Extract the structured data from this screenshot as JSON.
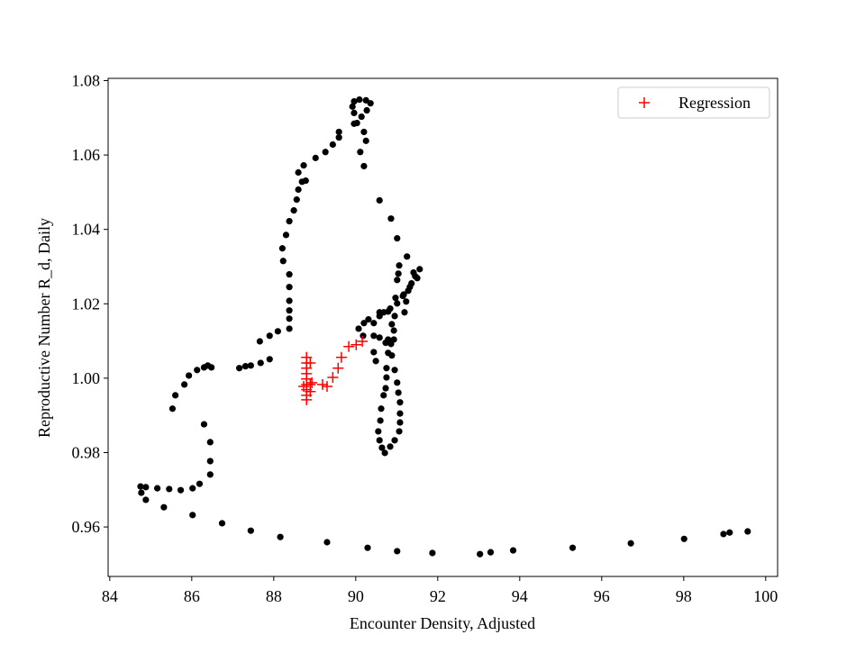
{
  "chart_data": {
    "type": "scatter",
    "xlabel": "Encounter Density, Adjusted",
    "ylabel": "Reproductive Number R_d, Daily",
    "xlim": [
      83.96,
      100.29
    ],
    "ylim": [
      0.9467,
      1.0806
    ],
    "xticks": [
      84,
      86,
      88,
      90,
      92,
      94,
      96,
      98,
      100
    ],
    "yticks": [
      0.96,
      0.98,
      {
        "value": 1,
        "label": "1.00"
      },
      1.02,
      1.04,
      1.06,
      1.08
    ],
    "legend": "upper right",
    "series": [
      {
        "color": "#000000",
        "marker": "circle",
        "x": [
          99.56,
          99.12,
          98.97,
          98.01,
          96.71,
          95.29,
          93.84,
          93.29,
          93.03,
          91.87,
          91.01,
          90.29,
          89.3,
          88.16,
          87.44,
          86.74,
          86.02,
          85.32,
          84.88,
          84.77,
          84.75,
          84.88,
          85.16,
          85.45,
          85.73,
          86.02,
          86.19,
          86.45,
          86.45,
          86.45,
          86.3,
          85.53,
          85.6,
          85.82,
          85.93,
          86.13,
          86.3,
          86.39,
          86.48,
          87.16,
          87.31,
          87.44,
          87.68,
          87.9,
          87.66,
          87.9,
          88.1,
          88.38,
          88.38,
          88.38,
          88.38,
          88.38,
          88.38,
          88.23,
          88.21,
          88.3,
          88.38,
          88.49,
          88.56,
          88.6,
          88.69,
          88.6,
          88.73,
          88.78,
          89.02,
          89.26,
          89.44,
          89.59,
          89.59,
          89.96,
          89.96,
          89.92,
          89.96,
          90.09,
          90.25,
          90.36,
          90.27,
          90.14,
          90.03,
          90.2,
          90.25,
          90.11,
          90.2,
          90.58,
          90.86,
          91.01,
          91.25,
          91.06,
          91.04,
          91.01,
          90.97,
          91.19,
          90.95,
          90.88,
          90.93,
          90.86,
          90.79,
          90.75,
          90.75,
          90.73,
          90.68,
          90.62,
          90.6,
          90.55,
          90.58,
          90.64,
          90.71,
          90.84,
          90.95,
          91.06,
          91.08,
          91.08,
          91.08,
          91.04,
          91.01,
          90.95,
          90.88,
          90.73,
          90.58,
          90.44,
          90.18,
          90.07,
          90.2,
          90.31,
          90.58,
          90.68,
          90.84,
          91.01,
          91.15,
          91.28,
          91.36,
          91.45,
          91.56,
          91.5,
          91.32,
          91.17,
          90.79,
          90.58,
          90.44,
          90.44,
          90.49,
          90.79,
          90.93,
          91.23,
          91.41
        ],
        "y": [
          0.9588,
          0.9585,
          0.9581,
          0.9568,
          0.9556,
          0.9544,
          0.9537,
          0.9532,
          0.9527,
          0.953,
          0.9535,
          0.9544,
          0.9559,
          0.9573,
          0.959,
          0.961,
          0.9632,
          0.9653,
          0.9673,
          0.9692,
          0.9709,
          0.9707,
          0.9704,
          0.9702,
          0.9699,
          0.9704,
          0.9716,
          0.9741,
          0.9777,
          0.9828,
          0.9876,
          0.9918,
          0.9954,
          0.9983,
          1.0007,
          1.0022,
          1.0029,
          1.0034,
          1.0029,
          1.0027,
          1.0032,
          1.0034,
          1.0041,
          1.0051,
          1.0099,
          1.0114,
          1.0126,
          1.0133,
          1.016,
          1.0182,
          1.0208,
          1.0245,
          1.0279,
          1.0315,
          1.0349,
          1.0385,
          1.0422,
          1.0451,
          1.048,
          1.0507,
          1.0528,
          1.0553,
          1.0572,
          1.0531,
          1.0592,
          1.0608,
          1.0628,
          1.0647,
          1.0662,
          1.0684,
          1.0713,
          1.073,
          1.0744,
          1.0749,
          1.0747,
          1.0739,
          1.072,
          1.0703,
          1.0686,
          1.0662,
          1.0638,
          1.0608,
          1.057,
          1.0478,
          1.0429,
          1.0376,
          1.0327,
          1.0303,
          1.0281,
          1.0264,
          1.0216,
          1.0177,
          1.0167,
          1.0145,
          1.0128,
          1.0092,
          1.0068,
          1.0027,
          1.0002,
          0.9973,
          0.9954,
          0.9918,
          0.9886,
          0.9857,
          0.9833,
          0.9813,
          0.9799,
          0.9816,
          0.9833,
          0.9857,
          0.9881,
          0.9905,
          0.9935,
          0.9961,
          0.9988,
          1.0022,
          1.0061,
          1.0095,
          1.0109,
          1.0114,
          1.0114,
          1.0133,
          1.0148,
          1.0158,
          1.0167,
          1.0177,
          1.0187,
          1.0201,
          1.0221,
          1.0235,
          1.0255,
          1.0274,
          1.0293,
          1.0269,
          1.0245,
          1.0225,
          1.0179,
          1.0177,
          1.0148,
          1.007,
          1.0046,
          1.0104,
          1.0104,
          1.0206,
          1.0284
        ]
      },
      {
        "name": "Regression",
        "color": "#ff0000",
        "marker": "plus",
        "x": [
          88.8,
          88.8,
          88.8,
          88.8,
          88.8,
          88.8,
          88.8,
          88.8,
          88.8,
          88.89,
          88.89,
          88.89,
          88.93,
          89.19,
          89.3,
          89.44,
          89.57,
          89.65,
          89.83,
          90.01,
          90.16,
          88.73
        ],
        "y": [
          1.0056,
          1.0041,
          1.0027,
          1.0012,
          0.9998,
          0.9983,
          0.9969,
          0.9954,
          0.9942,
          1.0041,
          0.9983,
          0.9964,
          0.9988,
          0.9983,
          0.9978,
          1.0002,
          1.0027,
          1.0056,
          1.0085,
          1.009,
          1.0099,
          0.9978
        ]
      }
    ]
  }
}
